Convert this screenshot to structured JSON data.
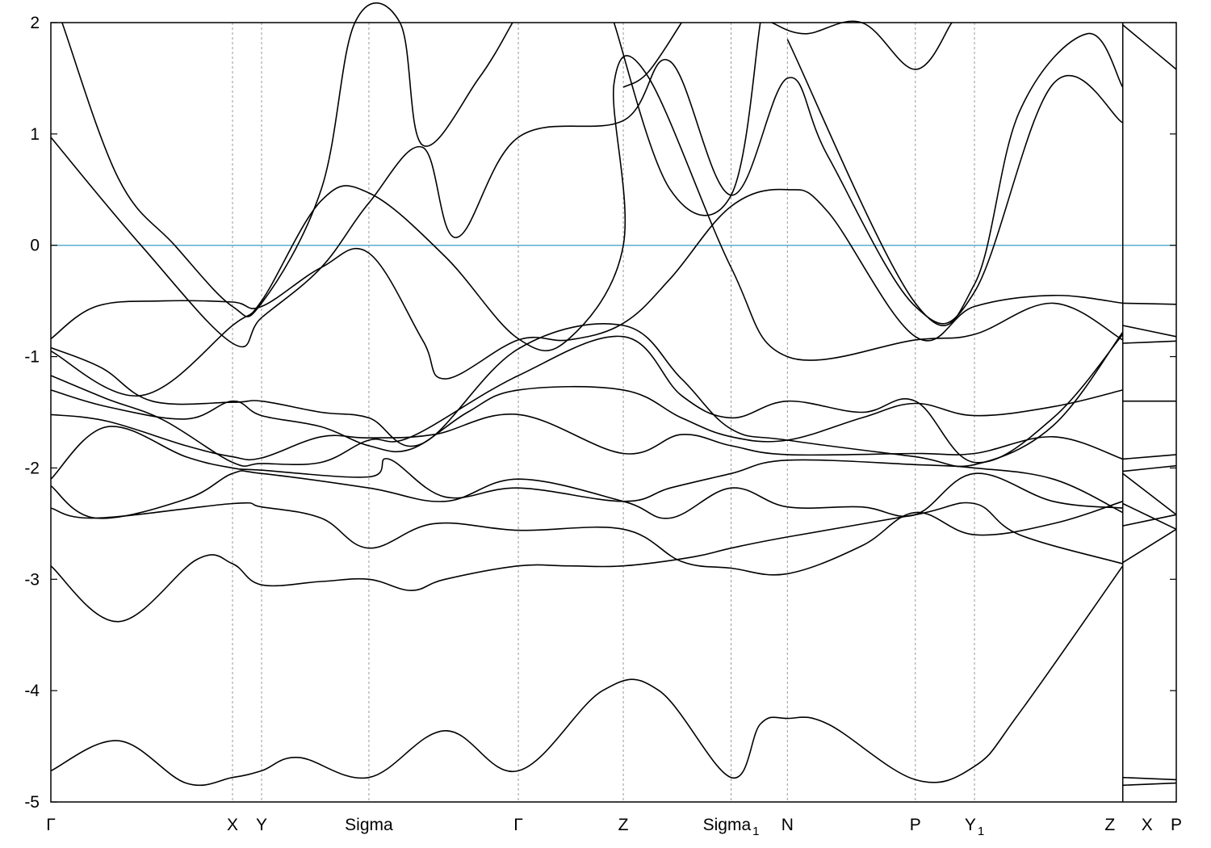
{
  "chart_data": {
    "type": "line",
    "title": "",
    "xlabel": "",
    "ylabel": "",
    "ylim": [
      -5,
      2
    ],
    "yticks": [
      -5,
      -4,
      -3,
      -2,
      -1,
      0,
      1,
      2
    ],
    "fermi_level": {
      "y": 0,
      "color": "#5aaed0"
    },
    "line_color": "#000000",
    "segment_break_after": "Z",
    "kpoints": [
      {
        "label": "Γ",
        "sub": "",
        "x": 0
      },
      {
        "label": "X",
        "sub": "",
        "x": 1.613
      },
      {
        "label": "Y",
        "sub": "",
        "x": 1.871
      },
      {
        "label": "Sigma",
        "sub": "",
        "x": 2.824
      },
      {
        "label": "Γ",
        "sub": "",
        "x": 4.151
      },
      {
        "label": "Z",
        "sub": "",
        "x": 5.083
      },
      {
        "label": "Sigma",
        "sub": "1",
        "x": 6.04
      },
      {
        "label": "N",
        "sub": "",
        "x": 6.54
      },
      {
        "label": "P",
        "sub": "",
        "x": 7.676
      },
      {
        "label": "Y",
        "sub": "1",
        "x": 8.201
      },
      {
        "label": "Z",
        "sub": "",
        "x": 9.518
      },
      {
        "label": "X",
        "sub": "",
        "x": 9.518
      },
      {
        "label": "P",
        "sub": "",
        "x": 9.993
      }
    ],
    "xlim": [
      0,
      9.993
    ],
    "series": [
      {
        "values": [
          [
            0,
            -4.72
          ],
          [
            0.6,
            -4.45
          ],
          [
            1.2,
            -4.83
          ],
          [
            1.613,
            -4.78
          ],
          [
            1.871,
            -4.72
          ],
          [
            2.2,
            -4.6
          ],
          [
            2.824,
            -4.78
          ],
          [
            3.5,
            -4.36
          ],
          [
            4.151,
            -4.72
          ],
          [
            4.9,
            -4.0
          ],
          [
            5.4,
            -4.0
          ],
          [
            6.04,
            -4.78
          ],
          [
            6.3,
            -4.3
          ],
          [
            6.54,
            -4.25
          ],
          [
            6.9,
            -4.3
          ],
          [
            7.676,
            -4.8
          ],
          [
            8.201,
            -4.68
          ],
          [
            8.6,
            -4.2
          ],
          [
            9.518,
            -2.88
          ]
        ]
      },
      {
        "values": [
          [
            0,
            -2.88
          ],
          [
            0.6,
            -3.38
          ],
          [
            1.3,
            -2.82
          ],
          [
            1.613,
            -2.86
          ],
          [
            1.871,
            -3.05
          ],
          [
            2.4,
            -3.02
          ],
          [
            2.824,
            -3.0
          ],
          [
            3.2,
            -3.1
          ],
          [
            3.5,
            -3.0
          ],
          [
            4.151,
            -2.88
          ],
          [
            4.6,
            -2.88
          ],
          [
            5.083,
            -2.88
          ],
          [
            5.7,
            -2.8
          ],
          [
            6.04,
            -2.72
          ],
          [
            6.54,
            -2.62
          ],
          [
            7.676,
            -2.42
          ],
          [
            8.201,
            -2.32
          ],
          [
            8.6,
            -2.6
          ],
          [
            9.518,
            -2.86
          ]
        ]
      },
      {
        "values": [
          [
            0,
            -2.36
          ],
          [
            0.4,
            -2.45
          ],
          [
            1.613,
            -2.32
          ],
          [
            1.871,
            -2.35
          ],
          [
            2.4,
            -2.45
          ],
          [
            2.824,
            -2.72
          ],
          [
            3.4,
            -2.5
          ],
          [
            4.151,
            -2.56
          ],
          [
            5.083,
            -2.55
          ],
          [
            5.6,
            -2.84
          ],
          [
            6.04,
            -2.9
          ],
          [
            6.54,
            -2.95
          ],
          [
            7.2,
            -2.7
          ],
          [
            7.676,
            -2.4
          ],
          [
            8.201,
            -2.6
          ],
          [
            8.9,
            -2.5
          ],
          [
            9.518,
            -2.3
          ]
        ]
      },
      {
        "values": [
          [
            0,
            -2.16
          ],
          [
            0.4,
            -2.45
          ],
          [
            1.2,
            -2.28
          ],
          [
            1.613,
            -2.05
          ],
          [
            1.871,
            -2.05
          ],
          [
            2.824,
            -2.18
          ],
          [
            3.5,
            -2.3
          ],
          [
            4.151,
            -2.1
          ],
          [
            5.083,
            -2.3
          ],
          [
            5.5,
            -2.45
          ],
          [
            6.04,
            -2.18
          ],
          [
            6.54,
            -2.35
          ],
          [
            7.2,
            -2.35
          ],
          [
            7.676,
            -2.42
          ],
          [
            8.201,
            -2.05
          ],
          [
            8.9,
            -2.3
          ],
          [
            9.518,
            -2.36
          ]
        ]
      },
      {
        "values": [
          [
            0,
            -2.1
          ],
          [
            0.5,
            -1.63
          ],
          [
            1.2,
            -1.9
          ],
          [
            1.613,
            -2.0
          ],
          [
            1.871,
            -2.02
          ],
          [
            2.824,
            -2.08
          ],
          [
            3.0,
            -1.92
          ],
          [
            3.5,
            -2.26
          ],
          [
            4.151,
            -2.18
          ],
          [
            5.083,
            -2.3
          ],
          [
            5.5,
            -2.18
          ],
          [
            6.04,
            -2.05
          ],
          [
            6.54,
            -1.93
          ],
          [
            7.676,
            -1.97
          ],
          [
            8.201,
            -2.0
          ],
          [
            8.9,
            -2.1
          ],
          [
            9.518,
            -2.4
          ]
        ]
      },
      {
        "values": [
          [
            0,
            -1.52
          ],
          [
            0.5,
            -1.58
          ],
          [
            1.2,
            -1.8
          ],
          [
            1.613,
            -1.9
          ],
          [
            1.871,
            -1.91
          ],
          [
            2.4,
            -1.72
          ],
          [
            2.824,
            -1.73
          ],
          [
            3.4,
            -1.7
          ],
          [
            4.151,
            -1.52
          ],
          [
            5.083,
            -1.87
          ],
          [
            5.6,
            -1.7
          ],
          [
            6.04,
            -1.8
          ],
          [
            6.54,
            -1.88
          ],
          [
            7.676,
            -1.87
          ],
          [
            8.201,
            -1.87
          ],
          [
            8.9,
            -1.72
          ],
          [
            9.518,
            -1.92
          ]
        ]
      },
      {
        "values": [
          [
            0,
            -1.3
          ],
          [
            0.5,
            -1.45
          ],
          [
            1.2,
            -1.56
          ],
          [
            1.613,
            -1.4
          ],
          [
            1.871,
            -1.53
          ],
          [
            2.4,
            -1.63
          ],
          [
            2.824,
            -1.8
          ],
          [
            3.2,
            -1.83
          ],
          [
            3.7,
            -1.5
          ],
          [
            4.151,
            -1.3
          ],
          [
            5.083,
            -1.3
          ],
          [
            5.6,
            -1.55
          ],
          [
            6.04,
            -1.72
          ],
          [
            6.54,
            -1.75
          ],
          [
            7.2,
            -1.55
          ],
          [
            7.676,
            -1.42
          ],
          [
            8.201,
            -1.53
          ],
          [
            8.9,
            -1.45
          ],
          [
            9.518,
            -1.3
          ]
        ]
      },
      {
        "values": [
          [
            0,
            -1.17
          ],
          [
            0.5,
            -1.38
          ],
          [
            1.0,
            -1.57
          ],
          [
            1.613,
            -1.95
          ],
          [
            1.871,
            -1.96
          ],
          [
            2.4,
            -1.95
          ],
          [
            2.824,
            -1.75
          ],
          [
            3.2,
            -1.72
          ],
          [
            4.151,
            -1.17
          ],
          [
            5.083,
            -0.82
          ],
          [
            5.6,
            -1.35
          ],
          [
            6.04,
            -1.55
          ],
          [
            6.54,
            -1.4
          ],
          [
            7.2,
            -1.5
          ],
          [
            7.676,
            -1.4
          ],
          [
            8.201,
            -1.95
          ],
          [
            8.9,
            -1.55
          ],
          [
            9.518,
            -0.8
          ]
        ]
      },
      {
        "values": [
          [
            0,
            -0.92
          ],
          [
            0.45,
            -1.1
          ],
          [
            0.9,
            -1.4
          ],
          [
            1.613,
            -1.41
          ],
          [
            1.871,
            -1.4
          ],
          [
            2.4,
            -1.5
          ],
          [
            2.824,
            -1.55
          ],
          [
            3.3,
            -1.78
          ],
          [
            4.151,
            -0.93
          ],
          [
            5.083,
            -0.72
          ],
          [
            5.6,
            -1.2
          ],
          [
            6.04,
            -1.65
          ],
          [
            6.54,
            -1.75
          ],
          [
            7.676,
            -1.9
          ],
          [
            8.201,
            -1.97
          ],
          [
            8.9,
            -1.62
          ],
          [
            9.518,
            -0.78
          ]
        ]
      },
      {
        "values": [
          [
            0,
            -0.84
          ],
          [
            0.4,
            -0.55
          ],
          [
            1.0,
            -0.5
          ],
          [
            1.613,
            -0.51
          ],
          [
            1.871,
            -0.55
          ],
          [
            2.4,
            -0.2
          ],
          [
            2.824,
            -0.07
          ],
          [
            3.3,
            -0.85
          ],
          [
            3.5,
            -1.2
          ],
          [
            4.151,
            -0.85
          ],
          [
            4.6,
            -0.85
          ],
          [
            5.083,
            -0.7
          ],
          [
            5.5,
            -0.3
          ],
          [
            6.04,
            0.35
          ],
          [
            6.54,
            0.5
          ],
          [
            6.9,
            0.3
          ],
          [
            7.676,
            -0.82
          ],
          [
            8.201,
            -0.55
          ],
          [
            8.9,
            -0.45
          ],
          [
            9.518,
            -0.52
          ]
        ]
      },
      {
        "values": [
          [
            0,
            -0.95
          ],
          [
            0.8,
            -1.35
          ],
          [
            1.613,
            -0.72
          ],
          [
            1.871,
            -0.5
          ],
          [
            2.4,
            0.4
          ],
          [
            2.824,
            0.47
          ],
          [
            3.5,
            -0.1
          ],
          [
            4.151,
            -0.84
          ],
          [
            4.6,
            -0.84
          ],
          [
            5.083,
            0.0
          ],
          [
            5.0,
            1.45
          ],
          [
            5.3,
            1.52
          ],
          [
            6.04,
            -0.2
          ],
          [
            6.54,
            -1.0
          ],
          [
            7.676,
            -0.85
          ],
          [
            8.201,
            -0.8
          ],
          [
            8.9,
            -0.52
          ],
          [
            9.518,
            -0.85
          ]
        ]
      },
      {
        "values": [
          [
            0,
            0.97
          ],
          [
            0.8,
            0.0
          ],
          [
            1.613,
            -0.88
          ],
          [
            1.871,
            -0.65
          ],
          [
            2.4,
            -0.2
          ],
          [
            2.824,
            0.38
          ],
          [
            3.3,
            0.88
          ],
          [
            3.6,
            0.07
          ],
          [
            4.151,
            0.97
          ],
          [
            5.083,
            1.12
          ],
          [
            5.5,
            1.65
          ],
          [
            6.04,
            0.45
          ],
          [
            6.54,
            1.5
          ],
          [
            6.9,
            0.8
          ],
          [
            7.676,
            -0.55
          ],
          [
            8.201,
            -0.42
          ],
          [
            8.9,
            1.45
          ],
          [
            9.518,
            1.1
          ]
        ]
      },
      {
        "values": [
          [
            0.1,
            2.0
          ],
          [
            0.6,
            0.6
          ],
          [
            1.1,
            0.0
          ],
          [
            1.613,
            -0.55
          ],
          [
            1.871,
            -0.52
          ],
          [
            2.4,
            0.5
          ],
          [
            2.7,
            2.0
          ],
          [
            3.1,
            2.0
          ],
          [
            3.3,
            0.9
          ],
          [
            3.8,
            1.5
          ],
          [
            4.1,
            2.0
          ]
        ]
      },
      {
        "values": [
          [
            5.083,
            1.42
          ],
          [
            5.3,
            1.55
          ],
          [
            5.6,
            2.0
          ]
        ]
      },
      {
        "values": [
          [
            5.0,
            2.0
          ],
          [
            5.5,
            0.5
          ],
          [
            6.04,
            0.45
          ],
          [
            6.3,
            2.0
          ]
        ]
      },
      {
        "values": [
          [
            6.4,
            2.0
          ],
          [
            6.7,
            1.9
          ],
          [
            7.2,
            2.0
          ],
          [
            7.676,
            1.58
          ],
          [
            8.0,
            2.0
          ]
        ]
      },
      {
        "values": [
          [
            6.54,
            1.85
          ],
          [
            7.676,
            -0.52
          ],
          [
            8.201,
            -0.35
          ],
          [
            8.6,
            1.2
          ],
          [
            9.2,
            1.9
          ],
          [
            9.518,
            1.42
          ]
        ]
      },
      {
        "values": [
          [
            9.518,
            1.98
          ],
          [
            9.993,
            1.58
          ]
        ]
      },
      {
        "values": [
          [
            9.518,
            -0.52
          ],
          [
            9.993,
            -0.53
          ]
        ]
      },
      {
        "values": [
          [
            9.518,
            -0.72
          ],
          [
            9.993,
            -0.82
          ]
        ]
      },
      {
        "values": [
          [
            9.518,
            -0.88
          ],
          [
            9.993,
            -0.86
          ]
        ]
      },
      {
        "values": [
          [
            9.518,
            -1.4
          ],
          [
            9.993,
            -1.4
          ]
        ]
      },
      {
        "values": [
          [
            9.518,
            -1.92
          ],
          [
            9.993,
            -1.88
          ]
        ]
      },
      {
        "values": [
          [
            9.518,
            -2.03
          ],
          [
            9.993,
            -1.98
          ]
        ]
      },
      {
        "values": [
          [
            9.518,
            -2.05
          ],
          [
            9.993,
            -2.42
          ]
        ]
      },
      {
        "values": [
          [
            9.518,
            -2.52
          ],
          [
            9.993,
            -2.42
          ]
        ]
      },
      {
        "values": [
          [
            9.518,
            -2.32
          ],
          [
            9.993,
            -2.55
          ]
        ]
      },
      {
        "values": [
          [
            9.518,
            -2.85
          ],
          [
            9.993,
            -2.55
          ]
        ]
      },
      {
        "values": [
          [
            9.518,
            -4.78
          ],
          [
            9.993,
            -4.8
          ]
        ]
      },
      {
        "values": [
          [
            9.518,
            -4.85
          ],
          [
            9.993,
            -4.83
          ]
        ]
      }
    ]
  }
}
